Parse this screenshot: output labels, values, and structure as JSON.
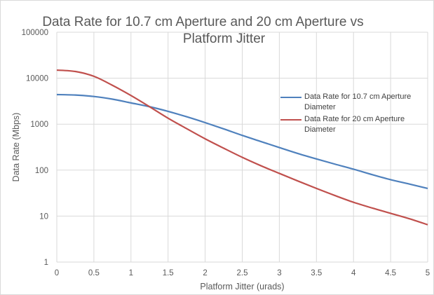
{
  "chart_data": {
    "type": "line",
    "title": "Data Rate for 10.7 cm Aperture and 20 cm Aperture vs Platform Jitter",
    "title_lines": [
      "Data Rate for 10.7 cm Aperture and 20 cm Aperture vs",
      "Platform Jitter"
    ],
    "xlabel": "Platform Jitter (urads)",
    "ylabel": "Data Rate (Mbps)",
    "xlim": [
      0,
      5
    ],
    "ylim": [
      1,
      100000
    ],
    "yscale": "log",
    "grid": true,
    "legend_position": "right",
    "x_ticks": [
      "0",
      "0.5",
      "1",
      "1.5",
      "2",
      "2.5",
      "3",
      "3.5",
      "4",
      "4.5",
      "5"
    ],
    "y_ticks": [
      "1",
      "10",
      "100",
      "1000",
      "10000",
      "100000"
    ],
    "x": [
      0,
      0.25,
      0.5,
      0.75,
      1,
      1.25,
      1.5,
      1.75,
      2,
      2.25,
      2.5,
      2.75,
      3,
      3.25,
      3.5,
      3.75,
      4,
      4.25,
      4.5,
      4.75,
      5
    ],
    "series": [
      {
        "name": "Data Rate for 10.7 cm Aperture Diameter",
        "color": "#4f81bd",
        "values": [
          4400,
          4300,
          4000,
          3500,
          2900,
          2400,
          1900,
          1450,
          1080,
          790,
          570,
          420,
          310,
          230,
          175,
          135,
          105,
          80,
          62,
          50,
          40
        ]
      },
      {
        "name": "Data Rate for 20 cm Aperture Diameter",
        "color": "#c0504d",
        "values": [
          15000,
          14000,
          11000,
          7000,
          4200,
          2400,
          1350,
          800,
          480,
          300,
          190,
          125,
          85,
          58,
          40,
          28,
          20,
          15,
          11.5,
          8.8,
          6.5
        ]
      }
    ]
  }
}
